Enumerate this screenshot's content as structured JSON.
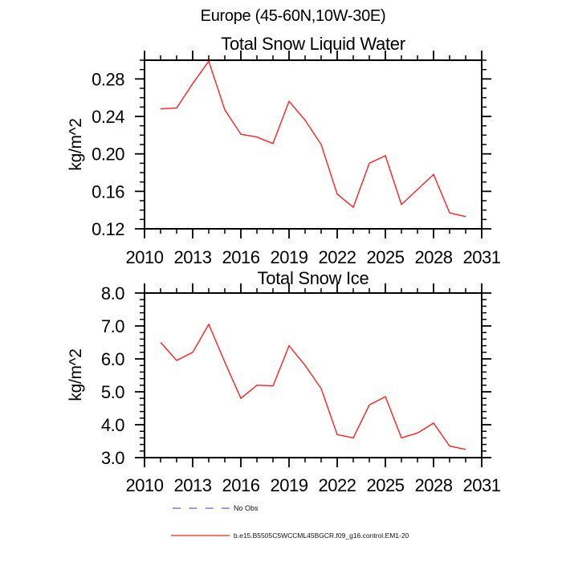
{
  "header": {
    "title": "Europe (45-60N,10W-30E)"
  },
  "chart_data": [
    {
      "type": "line",
      "title": "Total Snow Liquid Water",
      "xlabel": "",
      "ylabel": "kg/m^2",
      "xlim": [
        2010,
        2031
      ],
      "ylim": [
        0.12,
        0.3
      ],
      "grid": false,
      "x_major_ticks": [
        2010,
        2013,
        2016,
        2019,
        2022,
        2025,
        2028,
        2031
      ],
      "x_tick_labels": [
        "2010",
        "2013",
        "2016",
        "2019",
        "2022",
        "2025",
        "2028",
        "2031"
      ],
      "x_minor_step": 1,
      "y_major_ticks": [
        0.12,
        0.16,
        0.2,
        0.24,
        0.28
      ],
      "y_tick_labels": [
        "0.12",
        "0.16",
        "0.20",
        "0.24",
        "0.28"
      ],
      "y_minor_step": 0.01,
      "series": [
        {
          "name": "b.e15.B5505C5WCCML45BGCR.f09_g16.control.EM1-20",
          "color": "#ff2020",
          "x": [
            2011,
            2012,
            2013,
            2014,
            2015,
            2016,
            2017,
            2018,
            2019,
            2020,
            2021,
            2022,
            2023,
            2024,
            2025,
            2026,
            2027,
            2028,
            2029,
            2030
          ],
          "values": [
            0.248,
            0.249,
            0.275,
            0.299,
            0.247,
            0.221,
            0.218,
            0.211,
            0.256,
            0.236,
            0.21,
            0.157,
            0.143,
            0.19,
            0.198,
            0.146,
            0.162,
            0.178,
            0.137,
            0.133
          ]
        }
      ]
    },
    {
      "type": "line",
      "title": "Total Snow Ice",
      "xlabel": "",
      "ylabel": "kg/m^2",
      "xlim": [
        2010,
        2031
      ],
      "ylim": [
        3.0,
        8.0
      ],
      "grid": false,
      "x_major_ticks": [
        2010,
        2013,
        2016,
        2019,
        2022,
        2025,
        2028,
        2031
      ],
      "x_tick_labels": [
        "2010",
        "2013",
        "2016",
        "2019",
        "2022",
        "2025",
        "2028",
        "2031"
      ],
      "x_minor_step": 1,
      "y_major_ticks": [
        3.0,
        4.0,
        5.0,
        6.0,
        7.0,
        8.0
      ],
      "y_tick_labels": [
        "3.0",
        "4.0",
        "5.0",
        "6.0",
        "7.0",
        "8.0"
      ],
      "y_minor_step": 0.2,
      "series": [
        {
          "name": "b.e15.B5505C5WCCML45BGCR.f09_g16.control.EM1-20",
          "color": "#ff2020",
          "x": [
            2011,
            2012,
            2013,
            2014,
            2015,
            2016,
            2017,
            2018,
            2019,
            2020,
            2021,
            2022,
            2023,
            2024,
            2025,
            2026,
            2027,
            2028,
            2029,
            2030
          ],
          "values": [
            6.5,
            5.95,
            6.2,
            7.05,
            5.9,
            4.8,
            5.2,
            5.18,
            6.4,
            5.8,
            5.1,
            3.7,
            3.6,
            4.6,
            4.85,
            3.6,
            3.75,
            4.05,
            3.35,
            3.25
          ]
        }
      ]
    }
  ],
  "legend": {
    "items": [
      {
        "label": "No Obs",
        "style": "dashed",
        "color": "#7b7bd8"
      },
      {
        "label": "b.e15.B5505C5WCCML45BGCR.f09_g16.control.EM1-20",
        "style": "solid",
        "color": "#ff2020"
      }
    ]
  }
}
